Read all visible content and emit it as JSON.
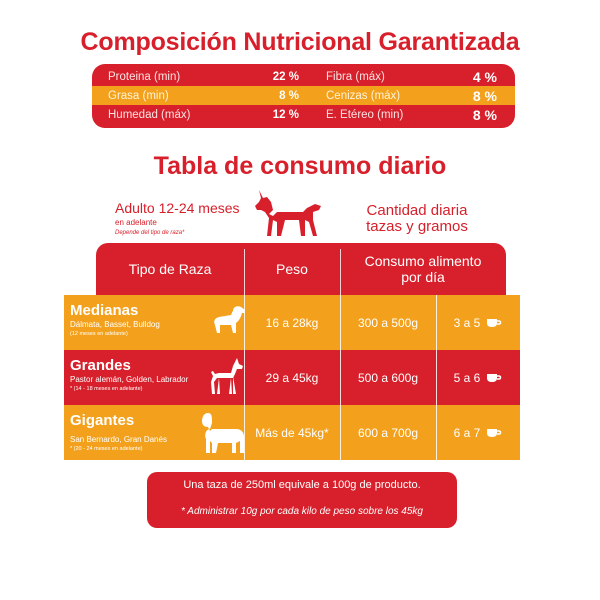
{
  "title": "Composición Nutricional Garantizada",
  "composition": [
    {
      "name1": "Proteina (min)",
      "value1": "22 %",
      "name2": "Fibra (máx)",
      "value2": "4 %"
    },
    {
      "name1": "Grasa (min)",
      "value1": "8 %",
      "name2": "Cenizas (máx)",
      "value2": "8 %"
    },
    {
      "name1": "Humedad (máx)",
      "value1": "12 %",
      "name2": "E. Etéreo (min)",
      "value2": "8 %"
    }
  ],
  "subtitle": "Tabla de consumo diario",
  "adult": {
    "label": "Adulto 12-24 meses",
    "sub": "en adelante",
    "note": "Depende del tipo de raza*"
  },
  "quantity": {
    "line1": "Cantidad diaria",
    "line2": "tazas y gramos"
  },
  "table": {
    "headers": {
      "breed": "Tipo de Raza",
      "weight": "Peso",
      "consumption_line1": "Consumo alimento",
      "consumption_line2": "por día"
    },
    "rows": [
      {
        "name": "Medianas",
        "desc": "Dálmata, Basset, Bulldog",
        "note": "(12 meses en adelante)",
        "weight": "16 a 28kg",
        "grams": "300 a 500g",
        "cups": "3 a 5"
      },
      {
        "name": "Grandes",
        "desc": "Pastor alemán, Golden, Labrador",
        "note": "* (14 - 18 meses en adelante)",
        "weight": "29 a 45kg",
        "grams": "500 a 600g",
        "cups": "5 a 6"
      },
      {
        "name": "Gigantes",
        "desc": "San Bernardo, Gran Danés",
        "note": "* (20 - 24 meses en adelante)",
        "weight": "Más de 45kg*",
        "grams": "600 a 700g",
        "cups": "6 a 7"
      }
    ]
  },
  "footer": {
    "line1": "Una taza de 250ml equivale a 100g de producto.",
    "line2": "* Administrar 10g por cada kilo de peso sobre los 45kg"
  },
  "colors": {
    "red": "#d7202b",
    "orange": "#f3a11c",
    "white": "#ffffff"
  },
  "icons": [
    "doberman-icon",
    "spaniel-icon",
    "doberman-small-icon",
    "saint-bernard-icon",
    "cup-icon"
  ]
}
